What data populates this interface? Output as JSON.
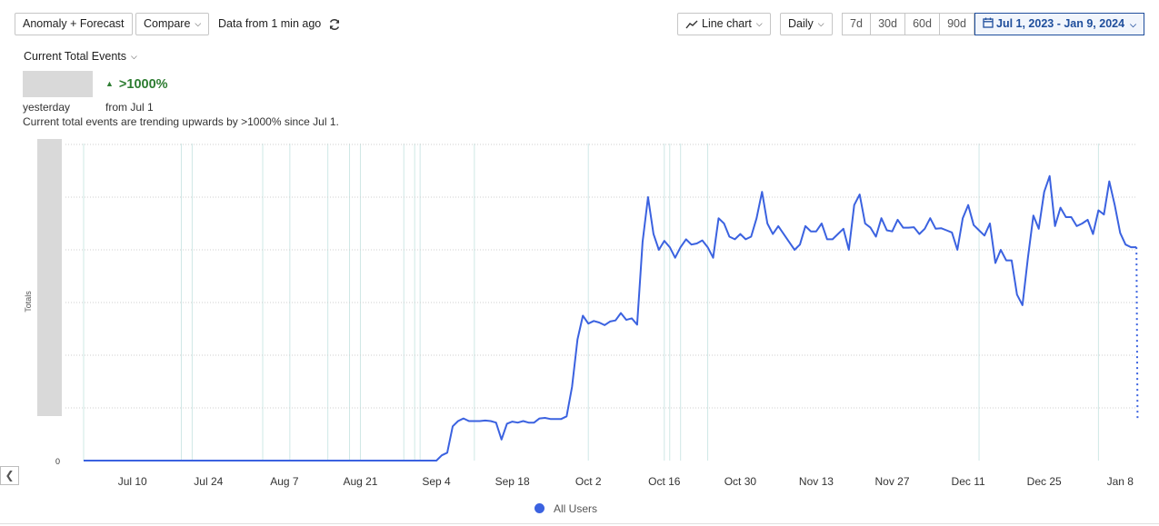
{
  "toolbar": {
    "mode_label": "Anomaly + Forecast",
    "compare_label": "Compare",
    "freshness": "Data from 1 min ago",
    "chart_type_label": "Line chart",
    "interval_label": "Daily",
    "ranges": [
      "7d",
      "30d",
      "60d",
      "90d"
    ],
    "date_range": "Jul 1, 2023 - Jan 9, 2024"
  },
  "summary": {
    "metric_label": "Current Total Events",
    "delta": ">1000%",
    "period_label": "yesterday",
    "since_label": "from Jul 1",
    "description": "Current total events are trending upwards by >1000% since Jul 1."
  },
  "colors": {
    "series": "#3b62e0",
    "positive": "#2e7d32",
    "accent": "#1f4e9c"
  },
  "chart_data": {
    "type": "line",
    "title": "",
    "ylabel": "Totals",
    "xlabel": "",
    "y_tick_labels": [
      "0"
    ],
    "ylim": [
      0,
      6
    ],
    "y_ticks": [
      0,
      1,
      2,
      3,
      4,
      5,
      6
    ],
    "x_tick_labels": [
      "Jul 10",
      "Jul 24",
      "Aug 7",
      "Aug 21",
      "Sep 4",
      "Sep 18",
      "Oct 2",
      "Oct 16",
      "Oct 30",
      "Nov 13",
      "Nov 27",
      "Dec 11",
      "Dec 25",
      "Jan 8"
    ],
    "x_start": "2023-07-01",
    "legend": "bottom-center",
    "grid": true,
    "anomaly_dates": [
      "Jul 1",
      "Jul 19",
      "Jul 21",
      "Aug 3",
      "Aug 8",
      "Aug 15",
      "Aug 19",
      "Aug 21",
      "Aug 29",
      "Aug 31",
      "Sep 1",
      "Sep 11",
      "Oct 2",
      "Oct 16",
      "Oct 17",
      "Oct 19",
      "Oct 24",
      "Dec 13",
      "Jan 4"
    ],
    "series": [
      {
        "name": "All Users",
        "values": [
          0,
          0,
          0,
          0,
          0,
          0,
          0,
          0,
          0,
          0,
          0,
          0,
          0,
          0,
          0,
          0,
          0,
          0,
          0,
          0,
          0,
          0,
          0,
          0,
          0,
          0,
          0,
          0,
          0,
          0,
          0,
          0,
          0,
          0,
          0,
          0,
          0,
          0,
          0,
          0,
          0,
          0,
          0,
          0,
          0,
          0,
          0,
          0,
          0,
          0,
          0,
          0,
          0,
          0,
          0,
          0,
          0,
          0,
          0,
          0,
          0,
          0,
          0,
          0,
          0,
          0,
          0.1,
          0.15,
          0.65,
          0.75,
          0.8,
          0.75,
          0.75,
          0.75,
          0.76,
          0.75,
          0.72,
          0.4,
          0.7,
          0.74,
          0.72,
          0.75,
          0.72,
          0.72,
          0.8,
          0.81,
          0.79,
          0.79,
          0.79,
          0.84,
          1.4,
          2.3,
          2.75,
          2.6,
          2.65,
          2.62,
          2.57,
          2.64,
          2.66,
          2.8,
          2.67,
          2.7,
          2.58,
          4.15,
          5.0,
          4.3,
          4.0,
          4.17,
          4.05,
          3.85,
          4.05,
          4.2,
          4.1,
          4.12,
          4.18,
          4.05,
          3.85,
          4.6,
          4.5,
          4.25,
          4.2,
          4.3,
          4.2,
          4.25,
          4.6,
          5.1,
          4.5,
          4.3,
          4.45,
          4.3,
          4.15,
          4.0,
          4.1,
          4.45,
          4.35,
          4.35,
          4.5,
          4.2,
          4.2,
          4.3,
          4.4,
          4.0,
          4.85,
          5.05,
          4.5,
          4.42,
          4.25,
          4.6,
          4.37,
          4.35,
          4.57,
          4.42,
          4.42,
          4.43,
          4.3,
          4.4,
          4.6,
          4.4,
          4.41,
          4.37,
          4.33,
          4.0,
          4.6,
          4.85,
          4.47,
          4.37,
          4.27,
          4.5,
          3.75,
          4.0,
          3.8,
          3.8,
          3.15,
          2.95,
          3.85,
          4.65,
          4.4,
          5.1,
          5.4,
          4.45,
          4.8,
          4.62,
          4.62,
          4.45,
          4.5,
          4.57,
          4.3,
          4.75,
          4.67,
          5.3,
          4.85,
          4.32,
          4.1,
          4.05,
          4.05
        ]
      }
    ],
    "forecast_tail": [
      4.05,
      0.8
    ]
  }
}
